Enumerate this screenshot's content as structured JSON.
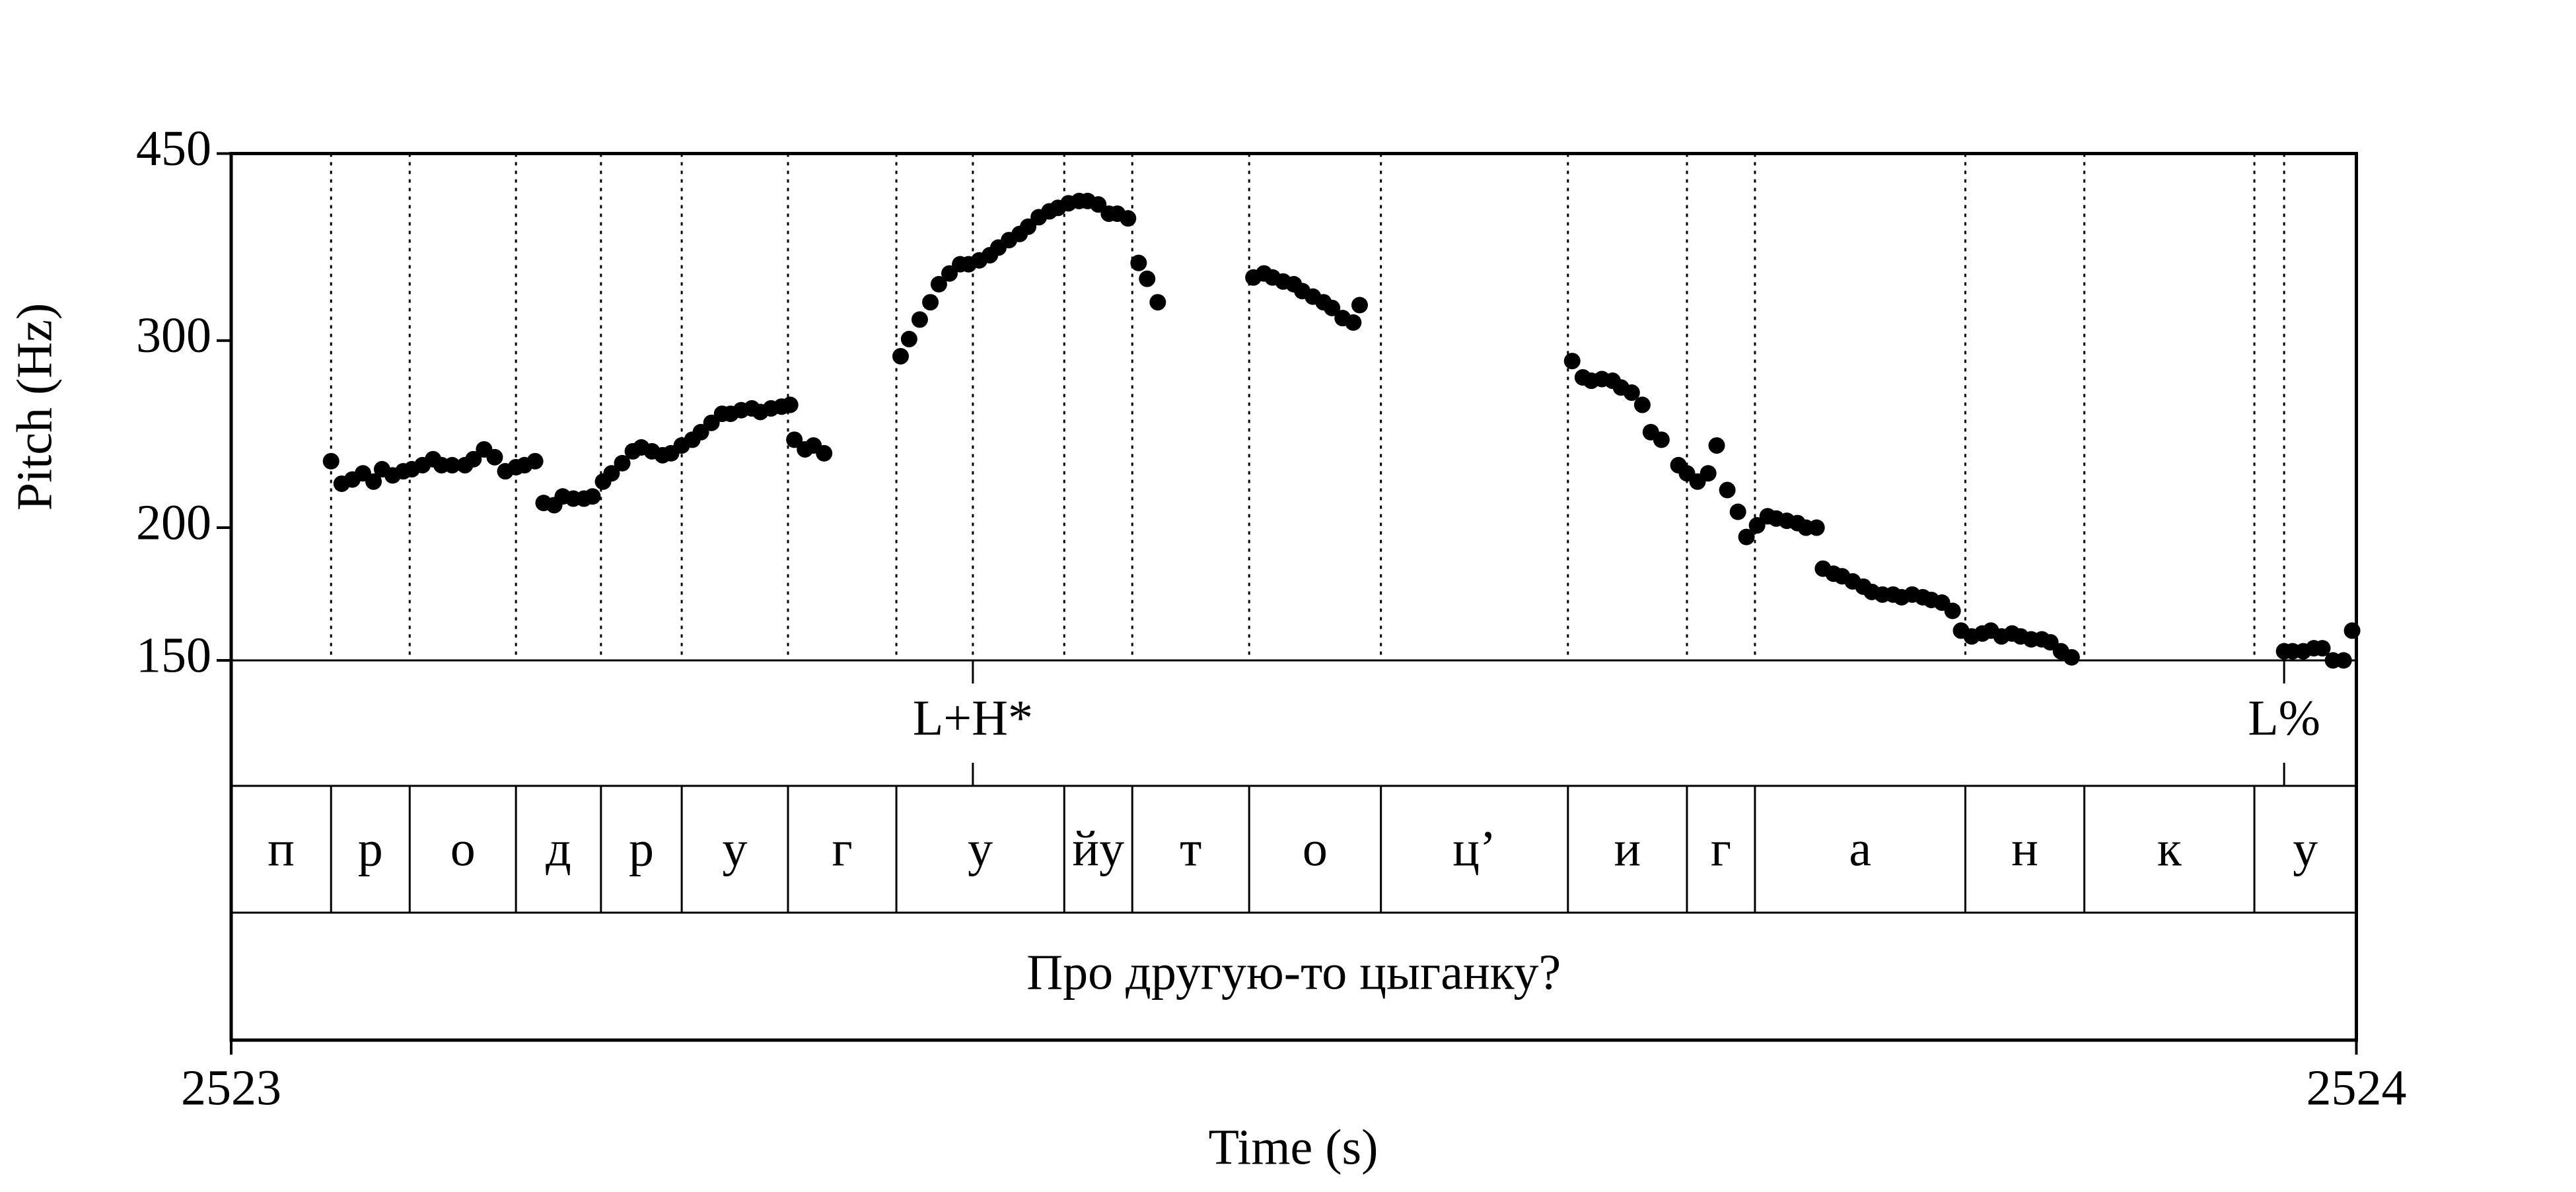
{
  "chart_data": {
    "type": "scatter",
    "xlabel": "Time (s)",
    "ylabel": "Pitch (Hz)",
    "xlim": [
      2523,
      2524
    ],
    "xticks": [
      2523,
      2524
    ],
    "ylim": [
      150,
      450
    ],
    "yticks": [
      150,
      200,
      300,
      450
    ],
    "log_y": true,
    "color": "#000000",
    "x": [
      2523.047,
      2523.052,
      2523.057,
      2523.062,
      2523.067,
      2523.071,
      2523.076,
      2523.081,
      2523.085,
      2523.09,
      2523.095,
      2523.099,
      2523.104,
      2523.11,
      2523.114,
      2523.119,
      2523.124,
      2523.129,
      2523.134,
      2523.138,
      2523.143,
      2523.147,
      2523.152,
      2523.156,
      2523.161,
      2523.166,
      2523.17,
      2523.175,
      2523.179,
      2523.184,
      2523.189,
      2523.193,
      2523.198,
      2523.203,
      2523.207,
      2523.212,
      2523.217,
      2523.221,
      2523.226,
      2523.231,
      2523.235,
      2523.24,
      2523.245,
      2523.249,
      2523.254,
      2523.259,
      2523.263,
      2523.265,
      2523.27,
      2523.274,
      2523.279,
      2523.315,
      2523.319,
      2523.324,
      2523.329,
      2523.333,
      2523.338,
      2523.343,
      2523.347,
      2523.352,
      2523.357,
      2523.361,
      2523.366,
      2523.371,
      2523.375,
      2523.38,
      2523.385,
      2523.389,
      2523.394,
      2523.399,
      2523.403,
      2523.408,
      2523.413,
      2523.417,
      2523.422,
      2523.427,
      2523.431,
      2523.436,
      2523.481,
      2523.486,
      2523.49,
      2523.495,
      2523.5,
      2523.504,
      2523.509,
      2523.514,
      2523.518,
      2523.523,
      2523.528,
      2523.531,
      2523.631,
      2523.636,
      2523.64,
      2523.645,
      2523.65,
      2523.654,
      2523.659,
      2523.664,
      2523.668,
      2523.673,
      2523.681,
      2523.685,
      2523.69,
      2523.695,
      2523.699,
      2523.704,
      2523.709,
      2523.713,
      2523.718,
      2523.723,
      2523.727,
      2523.732,
      2523.737,
      2523.741,
      2523.746,
      2523.749,
      2523.754,
      2523.758,
      2523.763,
      2523.768,
      2523.772,
      2523.777,
      2523.782,
      2523.786,
      2523.791,
      2523.796,
      2523.8,
      2523.805,
      2523.81,
      2523.814,
      2523.819,
      2523.824,
      2523.828,
      2523.833,
      2523.838,
      2523.842,
      2523.847,
      2523.852,
      2523.856,
      2523.861,
      2523.866,
      2523.966,
      2523.97,
      2523.975,
      2523.98,
      2523.984,
      2523.989,
      2523.994,
      2523.998
    ],
    "values": [
      231,
      220,
      222,
      225,
      221,
      227,
      224,
      226,
      227,
      229,
      232,
      229,
      229,
      229,
      232,
      237,
      233,
      226,
      228,
      229,
      231,
      211,
      210,
      214,
      213,
      213,
      214,
      221,
      225,
      230,
      236,
      238,
      236,
      234,
      235,
      239,
      242,
      246,
      251,
      256,
      256,
      258,
      259,
      257,
      259,
      260,
      261,
      242,
      237,
      239,
      235,
      290,
      301,
      314,
      326,
      339,
      347,
      354,
      354,
      357,
      361,
      367,
      373,
      378,
      384,
      392,
      397,
      400,
      404,
      406,
      406,
      403,
      395,
      395,
      391,
      355,
      343,
      326,
      344,
      347,
      344,
      341,
      339,
      334,
      330,
      326,
      322,
      315,
      312,
      324,
      287,
      277,
      275,
      276,
      275,
      271,
      268,
      261,
      246,
      242,
      229,
      225,
      221,
      225,
      239,
      217,
      207,
      196,
      201,
      205,
      204,
      203,
      202,
      200,
      200,
      183,
      181,
      180,
      178,
      176,
      174,
      173,
      173,
      172,
      173,
      172,
      171,
      170,
      167,
      160,
      158,
      159,
      160,
      158,
      159,
      158,
      157,
      157,
      156,
      153,
      151,
      153,
      153,
      153,
      154,
      154,
      150,
      150,
      160
    ],
    "tones": {
      "times": [
        2523.349,
        2523.966
      ],
      "labels": [
        "L+H*",
        "L%"
      ]
    },
    "phones": {
      "boundaries": [
        2523.047,
        2523.084,
        2523.134,
        2523.174,
        2523.212,
        2523.262,
        2523.313,
        2523.392,
        2523.424,
        2523.479,
        2523.541,
        2523.629,
        2523.685,
        2523.717,
        2523.816,
        2523.872,
        2523.952
      ],
      "labels": [
        "п",
        "р",
        "о",
        "д",
        "р",
        "у",
        "г",
        "у",
        "йу",
        "т",
        "о",
        "ц’",
        "и",
        "г",
        "а",
        "н",
        "к",
        "у"
      ]
    },
    "words": {
      "labels": [
        "Про другую-то цыганку?"
      ]
    }
  }
}
